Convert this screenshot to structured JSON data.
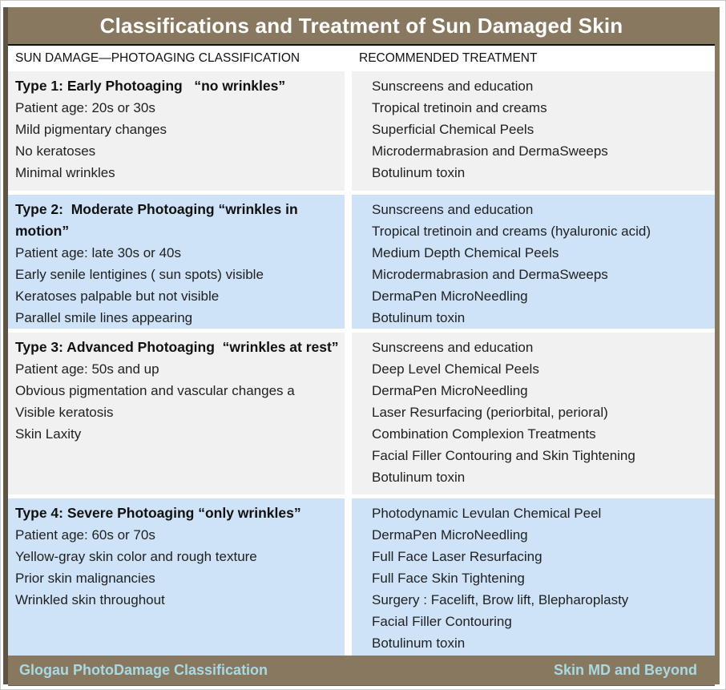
{
  "title": "Classifications and Treatment of Sun Damaged Skin",
  "column_headers": {
    "classification": "SUN DAMAGE—PHOTOAGING CLASSIFICATION",
    "treatment": "RECOMMENDED TREATMENT"
  },
  "rows": [
    {
      "type_label": "Type 1: Early Photoaging   “no wrinkles”",
      "features": [
        "Patient age: 20s or 30s",
        "Mild pigmentary changes",
        "No keratoses",
        "Minimal wrinkles"
      ],
      "treatments": [
        "Sunscreens and education",
        "Tropical tretinoin and creams",
        "Superficial Chemical Peels",
        "Microdermabrasion and DermaSweeps",
        "Botulinum toxin"
      ]
    },
    {
      "type_label": "Type 2:  Moderate Photoaging “wrinkles in motion”",
      "features": [
        "Patient age: late 30s or 40s",
        "Early senile lentigines ( sun spots) visible",
        "Keratoses palpable but not visible",
        "Parallel smile lines appearing"
      ],
      "treatments": [
        "Sunscreens and education",
        "Tropical tretinoin and creams (hyaluronic acid)",
        "Medium Depth Chemical Peels",
        "Microdermabrasion and DermaSweeps",
        "DermaPen MicroNeedling",
        "Botulinum toxin"
      ]
    },
    {
      "type_label": "Type 3: Advanced Photoaging  “wrinkles at rest”",
      "features": [
        "Patient age: 50s and up",
        "Obvious pigmentation and vascular changes a",
        "Visible keratosis",
        "Skin Laxity"
      ],
      "treatments": [
        "Sunscreens and education",
        "Deep Level Chemical Peels",
        "DermaPen MicroNeedling",
        "Laser Resurfacing (periorbital, perioral)",
        "Combination Complexion Treatments",
        "Facial Filler Contouring and Skin Tightening",
        "Botulinum toxin"
      ]
    },
    {
      "type_label": "Type 4: Severe Photoaging “only wrinkles”",
      "features": [
        "Patient age: 60s or 70s",
        "Yellow-gray skin color and rough texture",
        "Prior skin malignancies",
        "Wrinkled skin throughout"
      ],
      "treatments": [
        "Photodynamic Levulan Chemical Peel",
        "DermaPen MicroNeedling",
        "Full Face Laser Resurfacing",
        "Full Face Skin Tightening",
        "Surgery : Facelift, Brow lift, Blepharoplasty",
        "Facial Filler Contouring",
        "Botulinum toxin"
      ]
    }
  ],
  "footer": {
    "left": "Glogau PhotoDamage Classification",
    "right": "Skin MD and Beyond"
  },
  "colors": {
    "brown": "#87785f",
    "dark_brown": "#5f5343",
    "row_gray": "#f1f1f2",
    "row_blue": "#cee3f8",
    "footer_text": "#a9d9e2",
    "title_text": "#ffffff",
    "divider": "#111111"
  }
}
